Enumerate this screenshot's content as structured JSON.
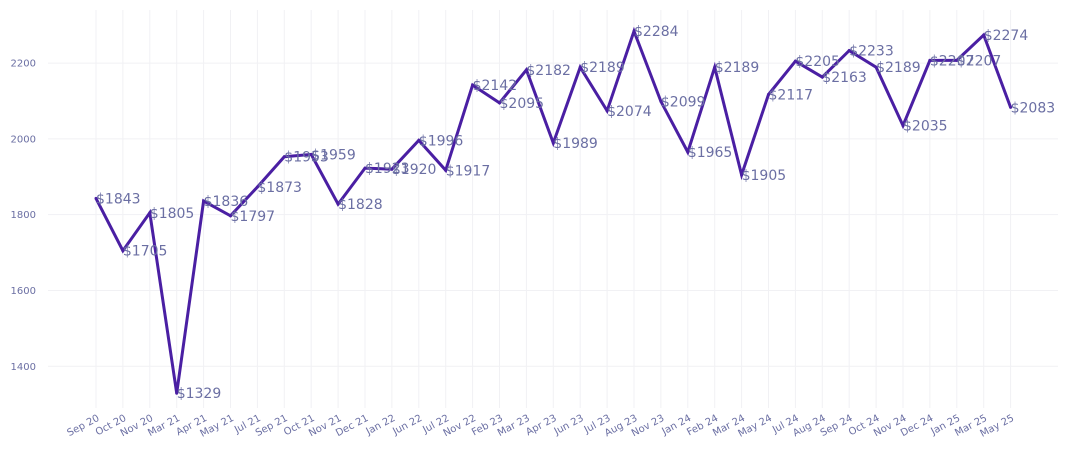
{
  "chart_data": {
    "type": "line",
    "title": "",
    "xlabel": "",
    "ylabel": "",
    "categories": [
      "Sep 20",
      "Oct 20",
      "Nov 20",
      "Mar 21",
      "Apr 21",
      "May 21",
      "Jul 21",
      "Sep 21",
      "Oct 21",
      "Nov 21",
      "Dec 21",
      "Jan 22",
      "Jun 22",
      "Jul 22",
      "Nov 22",
      "Feb 23",
      "Mar 23",
      "Apr 23",
      "Jun 23",
      "Jul 23",
      "Aug 23",
      "Nov 23",
      "Jan 24",
      "Feb 24",
      "Mar 24",
      "May 24",
      "Jul 24",
      "Aug 24",
      "Sep 24",
      "Oct 24",
      "Nov 24",
      "Dec 24",
      "Jan 25",
      "Mar 25",
      "May 25"
    ],
    "values": [
      1843,
      1705,
      1805,
      1329,
      1836,
      1797,
      1873,
      1953,
      1959,
      1828,
      1923,
      1920,
      1996,
      1917,
      2142,
      2095,
      2182,
      1989,
      2189,
      2074,
      2284,
      2099,
      1965,
      2189,
      1905,
      2117,
      2205,
      2163,
      2233,
      2189,
      2035,
      2207,
      2207,
      2274,
      2083
    ],
    "data_labels": [
      "$1843",
      "$1705",
      "$1805",
      "$1329",
      "$1836",
      "$1797",
      "$1873",
      "$1953",
      "$1959",
      "$1828",
      "$1923",
      "$1920",
      "$1996",
      "$1917",
      "$2142",
      "$2095",
      "$2182",
      "$1989",
      "$2189",
      "$2074",
      "$2284",
      "$2099",
      "$1965",
      "$2189",
      "$1905",
      "$2117",
      "$2205",
      "$2163",
      "$2233",
      "$2189",
      "$2035",
      "$2207",
      "$2207",
      "$2274",
      "$2083"
    ],
    "y_ticks": [
      1400,
      1600,
      1800,
      2000,
      2200
    ],
    "ylim": [
      1290,
      2340
    ],
    "grid": true,
    "legend": "none",
    "line_color": "#4a1fa3",
    "text_color": "#6b6fa3",
    "grid_color": "#f1f1f4"
  }
}
